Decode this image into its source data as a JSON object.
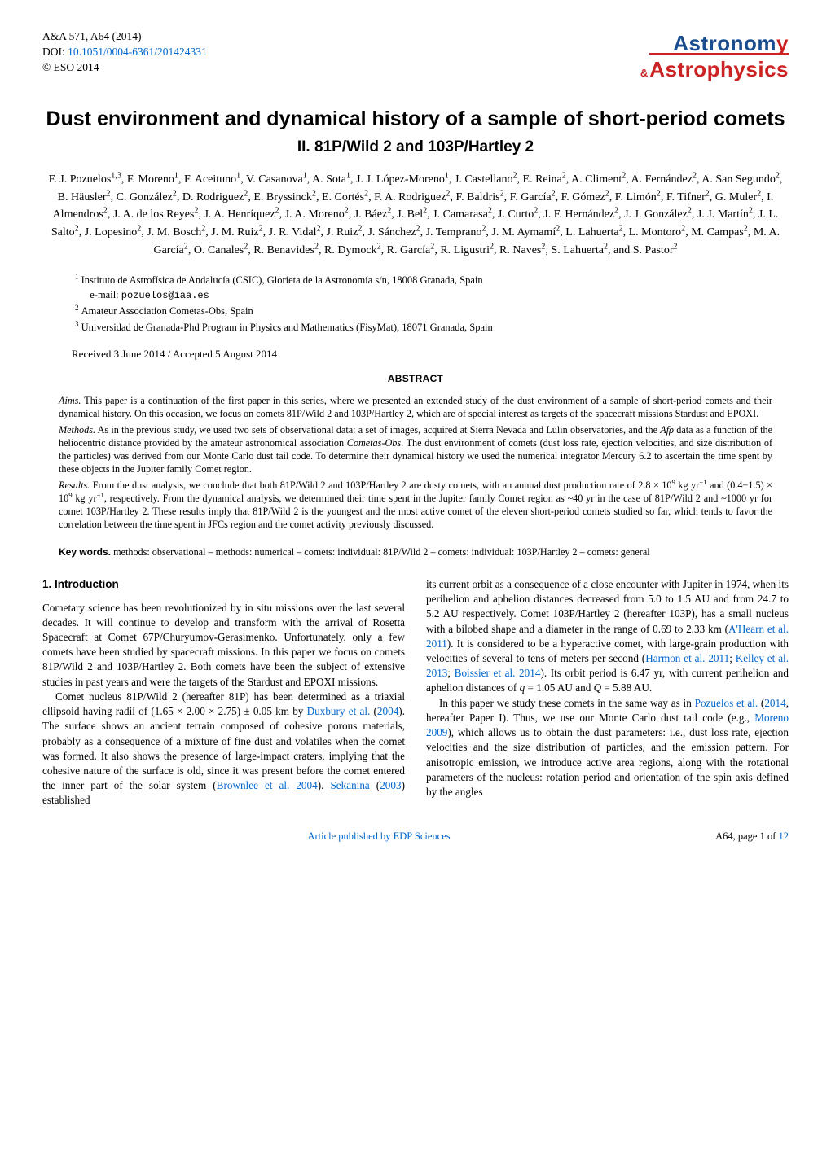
{
  "header": {
    "journal_ref": "A&A 571, A64 (2014)",
    "doi_label": "DOI: ",
    "doi_link": "10.1051/0004-6361/201424331",
    "copyright": "© ESO 2014",
    "logo_text_top_blue": "Astronom",
    "logo_text_top_red": "y",
    "logo_amp": "&",
    "logo_text_bottom": "Astrophysics"
  },
  "title": "Dust environment and dynamical history of a sample of short-period comets",
  "subtitle": "II. 81P/Wild 2 and 103P/Hartley 2",
  "authors_html": "F. J. Pozuelos<sup>1,3</sup>, F. Moreno<sup>1</sup>, F. Aceituno<sup>1</sup>, V. Casanova<sup>1</sup>, A. Sota<sup>1</sup>, J. J. López-Moreno<sup>1</sup>, J. Castellano<sup>2</sup>, E. Reina<sup>2</sup>, A. Climent<sup>2</sup>, A. Fernández<sup>2</sup>, A. San Segundo<sup>2</sup>, B. Häusler<sup>2</sup>, C. González<sup>2</sup>, D. Rodriguez<sup>2</sup>, E. Bryssinck<sup>2</sup>, E. Cortés<sup>2</sup>, F. A. Rodriguez<sup>2</sup>, F. Baldris<sup>2</sup>, F. García<sup>2</sup>, F. Gómez<sup>2</sup>, F. Limón<sup>2</sup>, F. Tifner<sup>2</sup>, G. Muler<sup>2</sup>, I. Almendros<sup>2</sup>, J. A. de los Reyes<sup>2</sup>, J. A. Henríquez<sup>2</sup>, J. A. Moreno<sup>2</sup>, J. Báez<sup>2</sup>, J. Bel<sup>2</sup>, J. Camarasa<sup>2</sup>, J. Curto<sup>2</sup>, J. F. Hernández<sup>2</sup>, J. J. González<sup>2</sup>, J. J. Martín<sup>2</sup>, J. L. Salto<sup>2</sup>, J. Lopesino<sup>2</sup>, J. M. Bosch<sup>2</sup>, J. M. Ruiz<sup>2</sup>, J. R. Vidal<sup>2</sup>, J. Ruiz<sup>2</sup>, J. Sánchez<sup>2</sup>, J. Temprano<sup>2</sup>, J. M. Aymamí<sup>2</sup>, L. Lahuerta<sup>2</sup>, L. Montoro<sup>2</sup>, M. Campas<sup>2</sup>, M. A. García<sup>2</sup>, O. Canales<sup>2</sup>, R. Benavides<sup>2</sup>, R. Dymock<sup>2</sup>, R. García<sup>2</sup>, R. Ligustri<sup>2</sup>, R. Naves<sup>2</sup>, S. Lahuerta<sup>2</sup>, and S. Pastor<sup>2</sup>",
  "affiliations": [
    {
      "num": "1",
      "text": "Instituto de Astrofísica de Andalucía (CSIC), Glorieta de la Astronomía s/n, 18008 Granada, Spain",
      "email_label": "e-mail: ",
      "email": "pozuelos@iaa.es"
    },
    {
      "num": "2",
      "text": "Amateur Association Cometas-Obs, Spain"
    },
    {
      "num": "3",
      "text": "Universidad de Granada-Phd Program in Physics and Mathematics (FisyMat), 18071 Granada, Spain"
    }
  ],
  "received": "Received 3 June 2014 / Accepted 5 August 2014",
  "abstract_heading": "ABSTRACT",
  "abstract": {
    "aims_label": "Aims.",
    "aims": " This paper is a continuation of the first paper in this series, where we presented an extended study of the dust environment of a sample of short-period comets and their dynamical history. On this occasion, we focus on comets 81P/Wild 2 and 103P/Hartley 2, which are of special interest as targets of the spacecraft missions Stardust and EPOXI.",
    "methods_label": "Methods.",
    "methods_html": " As in the previous study, we used two sets of observational data: a set of images, acquired at Sierra Nevada and Lulin observatories, and the <i>Afρ</i> data as a function of the heliocentric distance provided by the amateur astronomical association <i>Cometas-Obs</i>. The dust environment of comets (dust loss rate, ejection velocities, and size distribution of the particles) was derived from our Monte Carlo dust tail code. To determine their dynamical history we used the numerical integrator Mercury 6.2 to ascertain the time spent by these objects in the Jupiter family Comet region.",
    "results_label": "Results.",
    "results_html": " From the dust analysis, we conclude that both 81P/Wild 2 and 103P/Hartley 2 are dusty comets, with an annual dust production rate of 2.8 × 10<sup>9</sup> kg yr<sup>−1</sup> and (0.4−1.5) × 10<sup>9</sup> kg yr<sup>−1</sup>, respectively. From the dynamical analysis, we determined their time spent in the Jupiter family Comet region as ~40 yr in the case of 81P/Wild 2 and ~1000 yr for comet 103P/Hartley 2. These results imply that 81P/Wild 2 is the youngest and the most active comet of the eleven short-period comets studied so far, which tends to favor the correlation between the time spent in JFCs region and the comet activity previously discussed."
  },
  "keywords": {
    "label": "Key words.",
    "text": " methods: observational – methods: numerical – comets: individual: 81P/Wild 2 – comets: individual: 103P/Hartley 2 – comets: general"
  },
  "section1_heading": "1. Introduction",
  "col_left": {
    "p1": "Cometary science has been revolutionized by in situ missions over the last several decades. It will continue to develop and transform with the arrival of Rosetta Spacecraft at Comet 67P/Churyumov-Gerasimenko. Unfortunately, only a few comets have been studied by spacecraft missions. In this paper we focus on comets 81P/Wild 2 and 103P/Hartley 2. Both comets have been the subject of extensive studies in past years and were the targets of the Stardust and EPOXI missions.",
    "p2_html": "Comet nucleus 81P/Wild 2 (hereafter 81P) has been determined as a triaxial ellipsoid having radii of (1.65 × 2.00 × 2.75) ± 0.05 km by <span class=\"blue-link\">Duxbury et al.</span> (<span class=\"blue-link\">2004</span>). The surface shows an ancient terrain composed of cohesive porous materials, probably as a consequence of a mixture of fine dust and volatiles when the comet was formed. It also shows the presence of large-impact craters, implying that the cohesive nature of the surface is old, since it was present before the comet entered the inner part of the solar system (<span class=\"blue-link\">Brownlee et al. 2004</span>). <span class=\"blue-link\">Sekanina</span> (<span class=\"blue-link\">2003</span>) established"
  },
  "col_right": {
    "p1_html": "its current orbit as a consequence of a close encounter with Jupiter in 1974, when its perihelion and aphelion distances decreased from 5.0 to 1.5 AU and from 24.7 to 5.2 AU respectively. Comet 103P/Hartley 2 (hereafter 103P), has a small nucleus with a bilobed shape and a diameter in the range of 0.69 to 2.33 km (<span class=\"blue-link\">A'Hearn et al. 2011</span>). It is considered to be a hyperactive comet, with large-grain production with velocities of several to tens of meters per second (<span class=\"blue-link\">Harmon et al. 2011</span>; <span class=\"blue-link\">Kelley et al. 2013</span>; <span class=\"blue-link\">Boissier et al. 2014</span>). Its orbit period is 6.47 yr, with current perihelion and aphelion distances of <i>q</i> = 1.05 AU and <i>Q</i> = 5.88 AU.",
    "p2_html": "In this paper we study these comets in the same way as in <span class=\"blue-link\">Pozuelos et al.</span> (<span class=\"blue-link\">2014</span>, hereafter Paper I). Thus, we use our Monte Carlo dust tail code (e.g., <span class=\"blue-link\">Moreno 2009</span>), which allows us to obtain the dust parameters: i.e., dust loss rate, ejection velocities and the size distribution of particles, and the emission pattern. For anisotropic emission, we introduce active area regions, along with the rotational parameters of the nucleus: rotation period and orientation of the spin axis defined by the angles"
  },
  "footer": {
    "center": "Article published by EDP Sciences",
    "right": "A64, page 1 of ",
    "right_link": "12"
  },
  "colors": {
    "link_blue": "#0066cc",
    "logo_blue": "#1a4d8f",
    "logo_red": "#cc2222",
    "text": "#000000",
    "bg": "#ffffff"
  }
}
